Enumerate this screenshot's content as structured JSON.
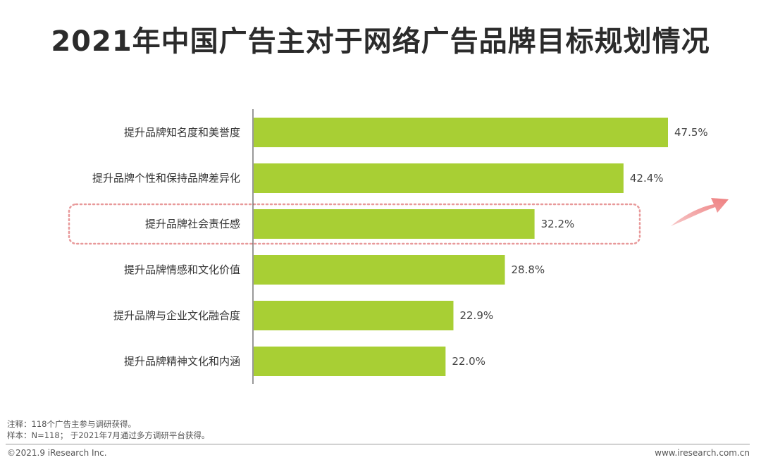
{
  "title": "2021年中国广告主对于网络广告品牌目标规划情况",
  "chart_data": {
    "type": "bar",
    "orientation": "horizontal",
    "categories": [
      "提升品牌知名度和美誉度",
      "提升品牌个性和保持品牌差异化",
      "提升品牌社会责任感",
      "提升品牌情感和文化价值",
      "提升品牌与企业文化融合度",
      "提升品牌精神文化和内涵"
    ],
    "values": [
      47.5,
      42.4,
      32.2,
      28.8,
      22.9,
      22.0
    ],
    "value_labels": [
      "47.5%",
      "42.4%",
      "32.2%",
      "28.8%",
      "22.9%",
      "22.0%"
    ],
    "xlim": [
      0,
      47.5
    ],
    "highlighted_category": "提升品牌社会责任感",
    "bar_color": "#a8cf34",
    "highlight_color": "#e8999a",
    "arrow_color": "#ef8a8a"
  },
  "notes": {
    "line1": "注释：118个广告主参与调研获得。",
    "line2": "样本：N=118； 于2021年7月通过多方调研平台获得。"
  },
  "footer": {
    "copyright": "©2021.9 iResearch Inc.",
    "site": "www.iresearch.com.cn"
  }
}
